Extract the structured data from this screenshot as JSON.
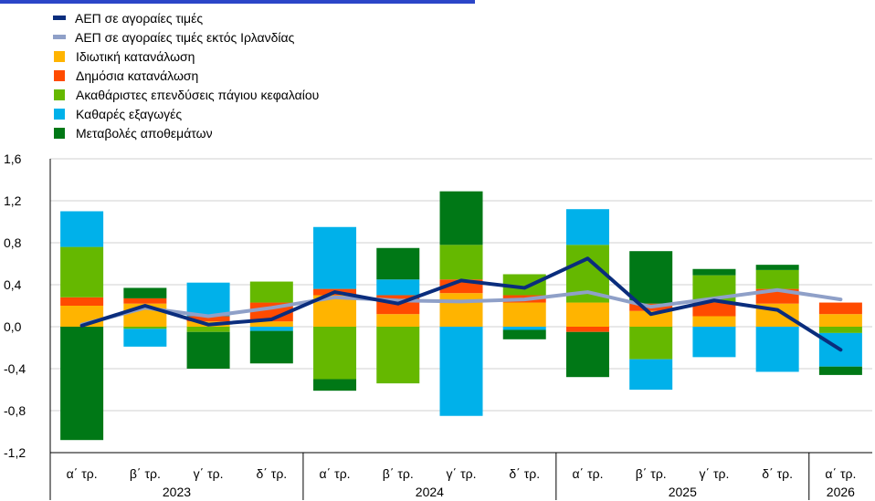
{
  "chart_data": {
    "type": "bar",
    "stacked": true,
    "colors": {
      "gdp": "#0a2d7d",
      "gdp_ex_ireland": "#8fa0c8",
      "private_consumption": "#ffb400",
      "public_consumption": "#ff4b00",
      "gfcf": "#65b800",
      "net_exports": "#00b1ea",
      "inventories": "#007816",
      "grid": "#d0d0d0",
      "title_strip": "#2b46c8"
    },
    "categories": [
      "α΄ τρ.",
      "β΄ τρ.",
      "γ΄ τρ.",
      "δ΄ τρ.",
      "α΄ τρ.",
      "β΄ τρ.",
      "γ΄ τρ.",
      "δ΄ τρ.",
      "α΄ τρ.",
      "β΄ τρ.",
      "γ΄ τρ.",
      "δ΄ τρ.",
      "α΄ τρ."
    ],
    "years": [
      {
        "label": "2023",
        "count": 4
      },
      {
        "label": "2024",
        "count": 4
      },
      {
        "label": "2025",
        "count": 4
      },
      {
        "label": "2026",
        "count": 1
      }
    ],
    "series": [
      {
        "name": "Ιδιωτική κατανάλωση",
        "key": "private_consumption",
        "kind": "bar",
        "values": [
          0.2,
          0.22,
          0.05,
          0.05,
          0.3,
          0.12,
          0.32,
          0.23,
          0.23,
          0.15,
          0.1,
          0.22,
          0.12
        ]
      },
      {
        "name": "Δημόσια κατανάλωση",
        "key": "public_consumption",
        "kind": "bar",
        "values": [
          0.08,
          0.05,
          0.05,
          0.18,
          0.06,
          0.18,
          0.13,
          0.07,
          -0.05,
          0.07,
          0.13,
          0.14,
          0.11
        ]
      },
      {
        "name": "Ακαθάριστες επενδύσεις πάγιου κεφαλαίου",
        "key": "gfcf",
        "kind": "bar",
        "values": [
          0.48,
          -0.02,
          -0.05,
          0.2,
          -0.5,
          -0.54,
          0.33,
          0.2,
          0.55,
          -0.31,
          0.26,
          0.18,
          -0.06
        ]
      },
      {
        "name": "Καθαρές εξαγωγές",
        "key": "net_exports",
        "kind": "bar",
        "values": [
          0.34,
          -0.17,
          0.32,
          -0.04,
          0.59,
          0.15,
          -0.85,
          -0.03,
          0.34,
          -0.29,
          -0.29,
          -0.43,
          -0.32
        ]
      },
      {
        "name": "Μεταβολές αποθεμάτων",
        "key": "inventories",
        "kind": "bar",
        "values": [
          -1.08,
          0.1,
          -0.35,
          -0.31,
          -0.11,
          0.3,
          0.51,
          -0.09,
          -0.43,
          0.5,
          0.06,
          0.05,
          -0.08
        ]
      },
      {
        "name": "ΑΕΠ σε αγοραίες τιμές",
        "key": "gdp",
        "kind": "line",
        "values": [
          0.01,
          0.2,
          0.02,
          0.07,
          0.33,
          0.22,
          0.44,
          0.37,
          0.65,
          0.12,
          0.25,
          0.16,
          -0.22
        ]
      },
      {
        "name": "ΑΕΠ σε αγοραίες τιμές εκτός Ιρλανδίας",
        "key": "gdp_ex_ireland",
        "kind": "line",
        "values": [
          0.02,
          0.18,
          0.1,
          0.18,
          0.28,
          0.25,
          0.24,
          0.26,
          0.33,
          0.19,
          0.27,
          0.35,
          0.26
        ]
      }
    ],
    "legend_order": [
      "gdp",
      "gdp_ex_ireland",
      "private_consumption",
      "public_consumption",
      "gfcf",
      "net_exports",
      "inventories"
    ],
    "ylim": [
      -1.2,
      1.6
    ],
    "yticks": [
      -1.2,
      -0.8,
      -0.4,
      0.0,
      0.4,
      0.8,
      1.2,
      1.6
    ],
    "ytick_labels": [
      "-1,2",
      "-0,8",
      "-0,4",
      "0,0",
      "0,4",
      "0,8",
      "1,2",
      "1,6"
    ],
    "grid": true,
    "legend_position": "top-left"
  }
}
